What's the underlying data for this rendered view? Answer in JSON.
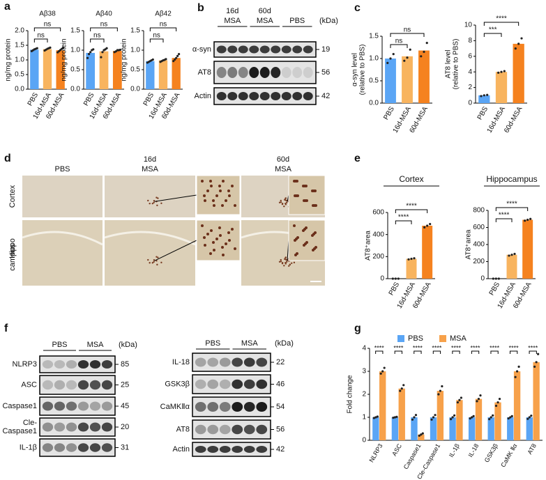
{
  "panel_letters": [
    "a",
    "b",
    "c",
    "d",
    "e",
    "f",
    "g"
  ],
  "chart_data": [
    {
      "type": "bar",
      "title": "Aβ38",
      "ylabel": [
        "ng/mg protein"
      ],
      "categories": [
        "PBS",
        "16d-MSA",
        "60d-MSA"
      ],
      "values": [
        1.35,
        1.37,
        1.33
      ],
      "points": [
        [
          1.3,
          1.33,
          1.36,
          1.38,
          1.4
        ],
        [
          1.32,
          1.35,
          1.38,
          1.4,
          1.42
        ],
        [
          1.26,
          1.3,
          1.34,
          1.38,
          1.42
        ]
      ],
      "colors": [
        "#5aa5f5",
        "#f8b45f",
        "#f5821f"
      ],
      "ylim": [
        0,
        2
      ],
      "yticks": [
        {
          "value": 0,
          "label": "0.0"
        },
        0.5,
        {
          "value": 1,
          "label": "1.0"
        },
        1.5,
        {
          "value": 2,
          "label": "2.0"
        }
      ],
      "annotations": [
        "ns",
        "ns"
      ]
    },
    {
      "type": "bar",
      "title": "Aβ40",
      "ylabel": [
        "ng/mg protein"
      ],
      "categories": [
        "PBS",
        "16d-MSA",
        "60d-MSA"
      ],
      "values": [
        0.93,
        0.97,
        0.98
      ],
      "points": [
        [
          0.8,
          0.9,
          0.95,
          1.0,
          1.02
        ],
        [
          0.82,
          0.95,
          1.0,
          1.02,
          1.05
        ],
        [
          0.95,
          0.97,
          1.0,
          1.0,
          1.01
        ]
      ],
      "colors": [
        "#5aa5f5",
        "#f8b45f",
        "#f5821f"
      ],
      "ylim": [
        0,
        1.5
      ],
      "yticks": [
        {
          "value": 0,
          "label": "0.0"
        },
        0.5,
        {
          "value": 1,
          "label": "1.0"
        },
        1.5
      ],
      "annotations": [
        "ns",
        "ns"
      ]
    },
    {
      "type": "bar",
      "title": "Aβ42",
      "ylabel": [
        "ng/mg protein"
      ],
      "categories": [
        "PBS",
        "16d-MSA",
        "60d-MSA"
      ],
      "values": [
        0.72,
        0.74,
        0.8
      ],
      "points": [
        [
          0.68,
          0.7,
          0.72,
          0.74,
          0.76
        ],
        [
          0.7,
          0.72,
          0.74,
          0.75,
          0.77
        ],
        [
          0.72,
          0.76,
          0.8,
          0.85,
          0.9
        ]
      ],
      "colors": [
        "#5aa5f5",
        "#f8b45f",
        "#f5821f"
      ],
      "ylim": [
        0,
        1.5
      ],
      "yticks": [
        {
          "value": 0,
          "label": "0.0"
        },
        0.5,
        {
          "value": 1,
          "label": "1.0"
        },
        1.5
      ],
      "annotations": [
        "ns",
        "ns"
      ]
    },
    {
      "type": "bar",
      "ylabel": [
        "α-syn level",
        "(relative to PBS)"
      ],
      "categories": [
        "PBS",
        "16d-MSA",
        "60d-MSA"
      ],
      "values": [
        1.0,
        1.05,
        1.18
      ],
      "points": [
        [
          0.9,
          1.0,
          1.1
        ],
        [
          0.95,
          1.02,
          1.2
        ],
        [
          1.05,
          1.15,
          1.35
        ]
      ],
      "colors": [
        "#5aa5f5",
        "#f8b45f",
        "#f5821f"
      ],
      "ylim": [
        0,
        1.5
      ],
      "yticks": [
        {
          "value": 0,
          "label": "0.0"
        },
        0.5,
        {
          "value": 1,
          "label": "1.0"
        },
        1.5
      ],
      "annotations": [
        "ns",
        "ns"
      ]
    },
    {
      "type": "bar",
      "ylabel": [
        "AT8 level",
        "(relative to PBS)"
      ],
      "categories": [
        "PBS",
        "16d-MSA",
        "60d-MSA"
      ],
      "values": [
        1.0,
        4.0,
        7.6
      ],
      "points": [
        [
          0.9,
          1.0,
          1.05
        ],
        [
          3.9,
          4.0,
          4.1
        ],
        [
          7.0,
          7.6,
          8.3
        ]
      ],
      "colors": [
        "#5aa5f5",
        "#f8b45f",
        "#f5821f"
      ],
      "ylim": [
        0,
        10
      ],
      "yticks": [
        0,
        2,
        4,
        6,
        8,
        10
      ],
      "annotations": [
        "***",
        "****"
      ]
    },
    {
      "type": "bar",
      "title": "Cortex",
      "ylabel": [
        "AT8⁺area"
      ],
      "categories": [
        "PBS",
        "16d-MSA",
        "60d-MSA"
      ],
      "values": [
        0,
        180,
        480
      ],
      "points": [
        [
          0,
          0,
          0
        ],
        [
          175,
          180,
          185
        ],
        [
          465,
          480,
          495
        ]
      ],
      "colors": [
        "#5aa5f5",
        "#f8b45f",
        "#f5821f"
      ],
      "ylim": [
        0,
        600
      ],
      "yticks": [
        0,
        200,
        400,
        600
      ],
      "annotations": [
        "****",
        "****"
      ]
    },
    {
      "type": "bar",
      "title": "Hippocampus",
      "ylabel": [
        "AT8⁺area"
      ],
      "categories": [
        "PBS",
        "16d-MSA",
        "60d-MSA"
      ],
      "values": [
        0,
        280,
        690
      ],
      "points": [
        [
          0,
          0,
          0
        ],
        [
          270,
          280,
          290
        ],
        [
          680,
          690,
          700
        ]
      ],
      "colors": [
        "#5aa5f5",
        "#f8b45f",
        "#f5821f"
      ],
      "ylim": [
        0,
        800
      ],
      "yticks": [
        0,
        200,
        400,
        600,
        800
      ],
      "annotations": [
        "****",
        "****"
      ]
    },
    {
      "type": "grouped_bar",
      "ylabel": [
        "Fold change"
      ],
      "legend": "top",
      "categories": [
        "NLRP3",
        "ASC",
        "Caspase1",
        "Cle-Caspase1",
        "IL-1β",
        "IL-18",
        "GSK3β",
        "CaMK Ⅱα",
        "AT8"
      ],
      "series": [
        {
          "name": "PBS",
          "color": "#5aa5f5",
          "values": [
            1,
            1,
            1,
            1,
            1,
            1,
            1,
            1,
            1
          ],
          "points": [
            [
              0.97,
              1,
              1.03
            ],
            [
              0.98,
              1,
              1.02
            ],
            [
              0.9,
              1,
              1.1
            ],
            [
              0.9,
              1,
              1.1
            ],
            [
              0.92,
              1,
              1.08
            ],
            [
              0.95,
              1,
              1.05
            ],
            [
              0.92,
              1,
              1.08
            ],
            [
              0.95,
              1,
              1.05
            ],
            [
              0.93,
              1,
              1.07
            ]
          ]
        },
        {
          "name": "MSA",
          "color": "#f7a14a",
          "values": [
            3.0,
            2.25,
            0.25,
            2.15,
            1.75,
            1.8,
            1.65,
            3.0,
            3.4
          ],
          "points": [
            [
              2.9,
              3.0,
              3.15
            ],
            [
              2.15,
              2.25,
              2.4
            ],
            [
              0.2,
              0.25,
              0.3
            ],
            [
              2.0,
              2.15,
              2.35
            ],
            [
              1.65,
              1.75,
              1.85
            ],
            [
              1.7,
              1.8,
              1.95
            ],
            [
              1.5,
              1.65,
              1.8
            ],
            [
              2.75,
              3.0,
              3.2
            ],
            [
              3.2,
              3.4,
              3.75
            ]
          ]
        }
      ],
      "ylim": [
        0,
        4
      ],
      "yticks": [
        0,
        1,
        2,
        3,
        4
      ],
      "annotations": [
        "****",
        "****",
        "****",
        "****",
        "****",
        "****",
        "****",
        "****",
        "****"
      ]
    }
  ],
  "blot_b": {
    "columns": [
      [
        "16d",
        "MSA"
      ],
      [
        "60d",
        "MSA"
      ],
      [
        "PBS"
      ]
    ],
    "unit": "(kDa)",
    "rows": [
      {
        "label": "α-syn",
        "kda": "19"
      },
      {
        "label": "AT8",
        "kda": "56"
      },
      {
        "label": "Actin",
        "kda": "42"
      }
    ]
  },
  "images_d": {
    "columns": [
      [
        "PBS"
      ],
      [
        "16d",
        "MSA"
      ],
      [
        "60d",
        "MSA"
      ]
    ],
    "rows": [
      [
        "Cortex"
      ],
      [
        "Hippo",
        "campus"
      ]
    ]
  },
  "blot_f_left": {
    "columns": [
      [
        "PBS"
      ],
      [
        "MSA"
      ]
    ],
    "unit": "(kDa)",
    "rows": [
      {
        "label": [
          "NLRP3"
        ],
        "kda": "85"
      },
      {
        "label": [
          "ASC"
        ],
        "kda": "25"
      },
      {
        "label": [
          "Caspase1"
        ],
        "kda": "45"
      },
      {
        "label": [
          "Cle-",
          "Caspase1"
        ],
        "kda": "20"
      },
      {
        "label": [
          "IL-1β"
        ],
        "kda": "31"
      }
    ]
  },
  "blot_f_right": {
    "columns": [
      [
        "PBS"
      ],
      [
        "MSA"
      ]
    ],
    "unit": "(kDa)",
    "rows": [
      {
        "label": [
          "IL-18"
        ],
        "kda": "22"
      },
      {
        "label": [
          "GSK3β"
        ],
        "kda": "46"
      },
      {
        "label": [
          "CaMKⅡα"
        ],
        "kda": "54"
      },
      {
        "label": [
          "AT8"
        ],
        "kda": "56"
      },
      {
        "label": [
          "Actin"
        ],
        "kda": "42"
      }
    ]
  }
}
